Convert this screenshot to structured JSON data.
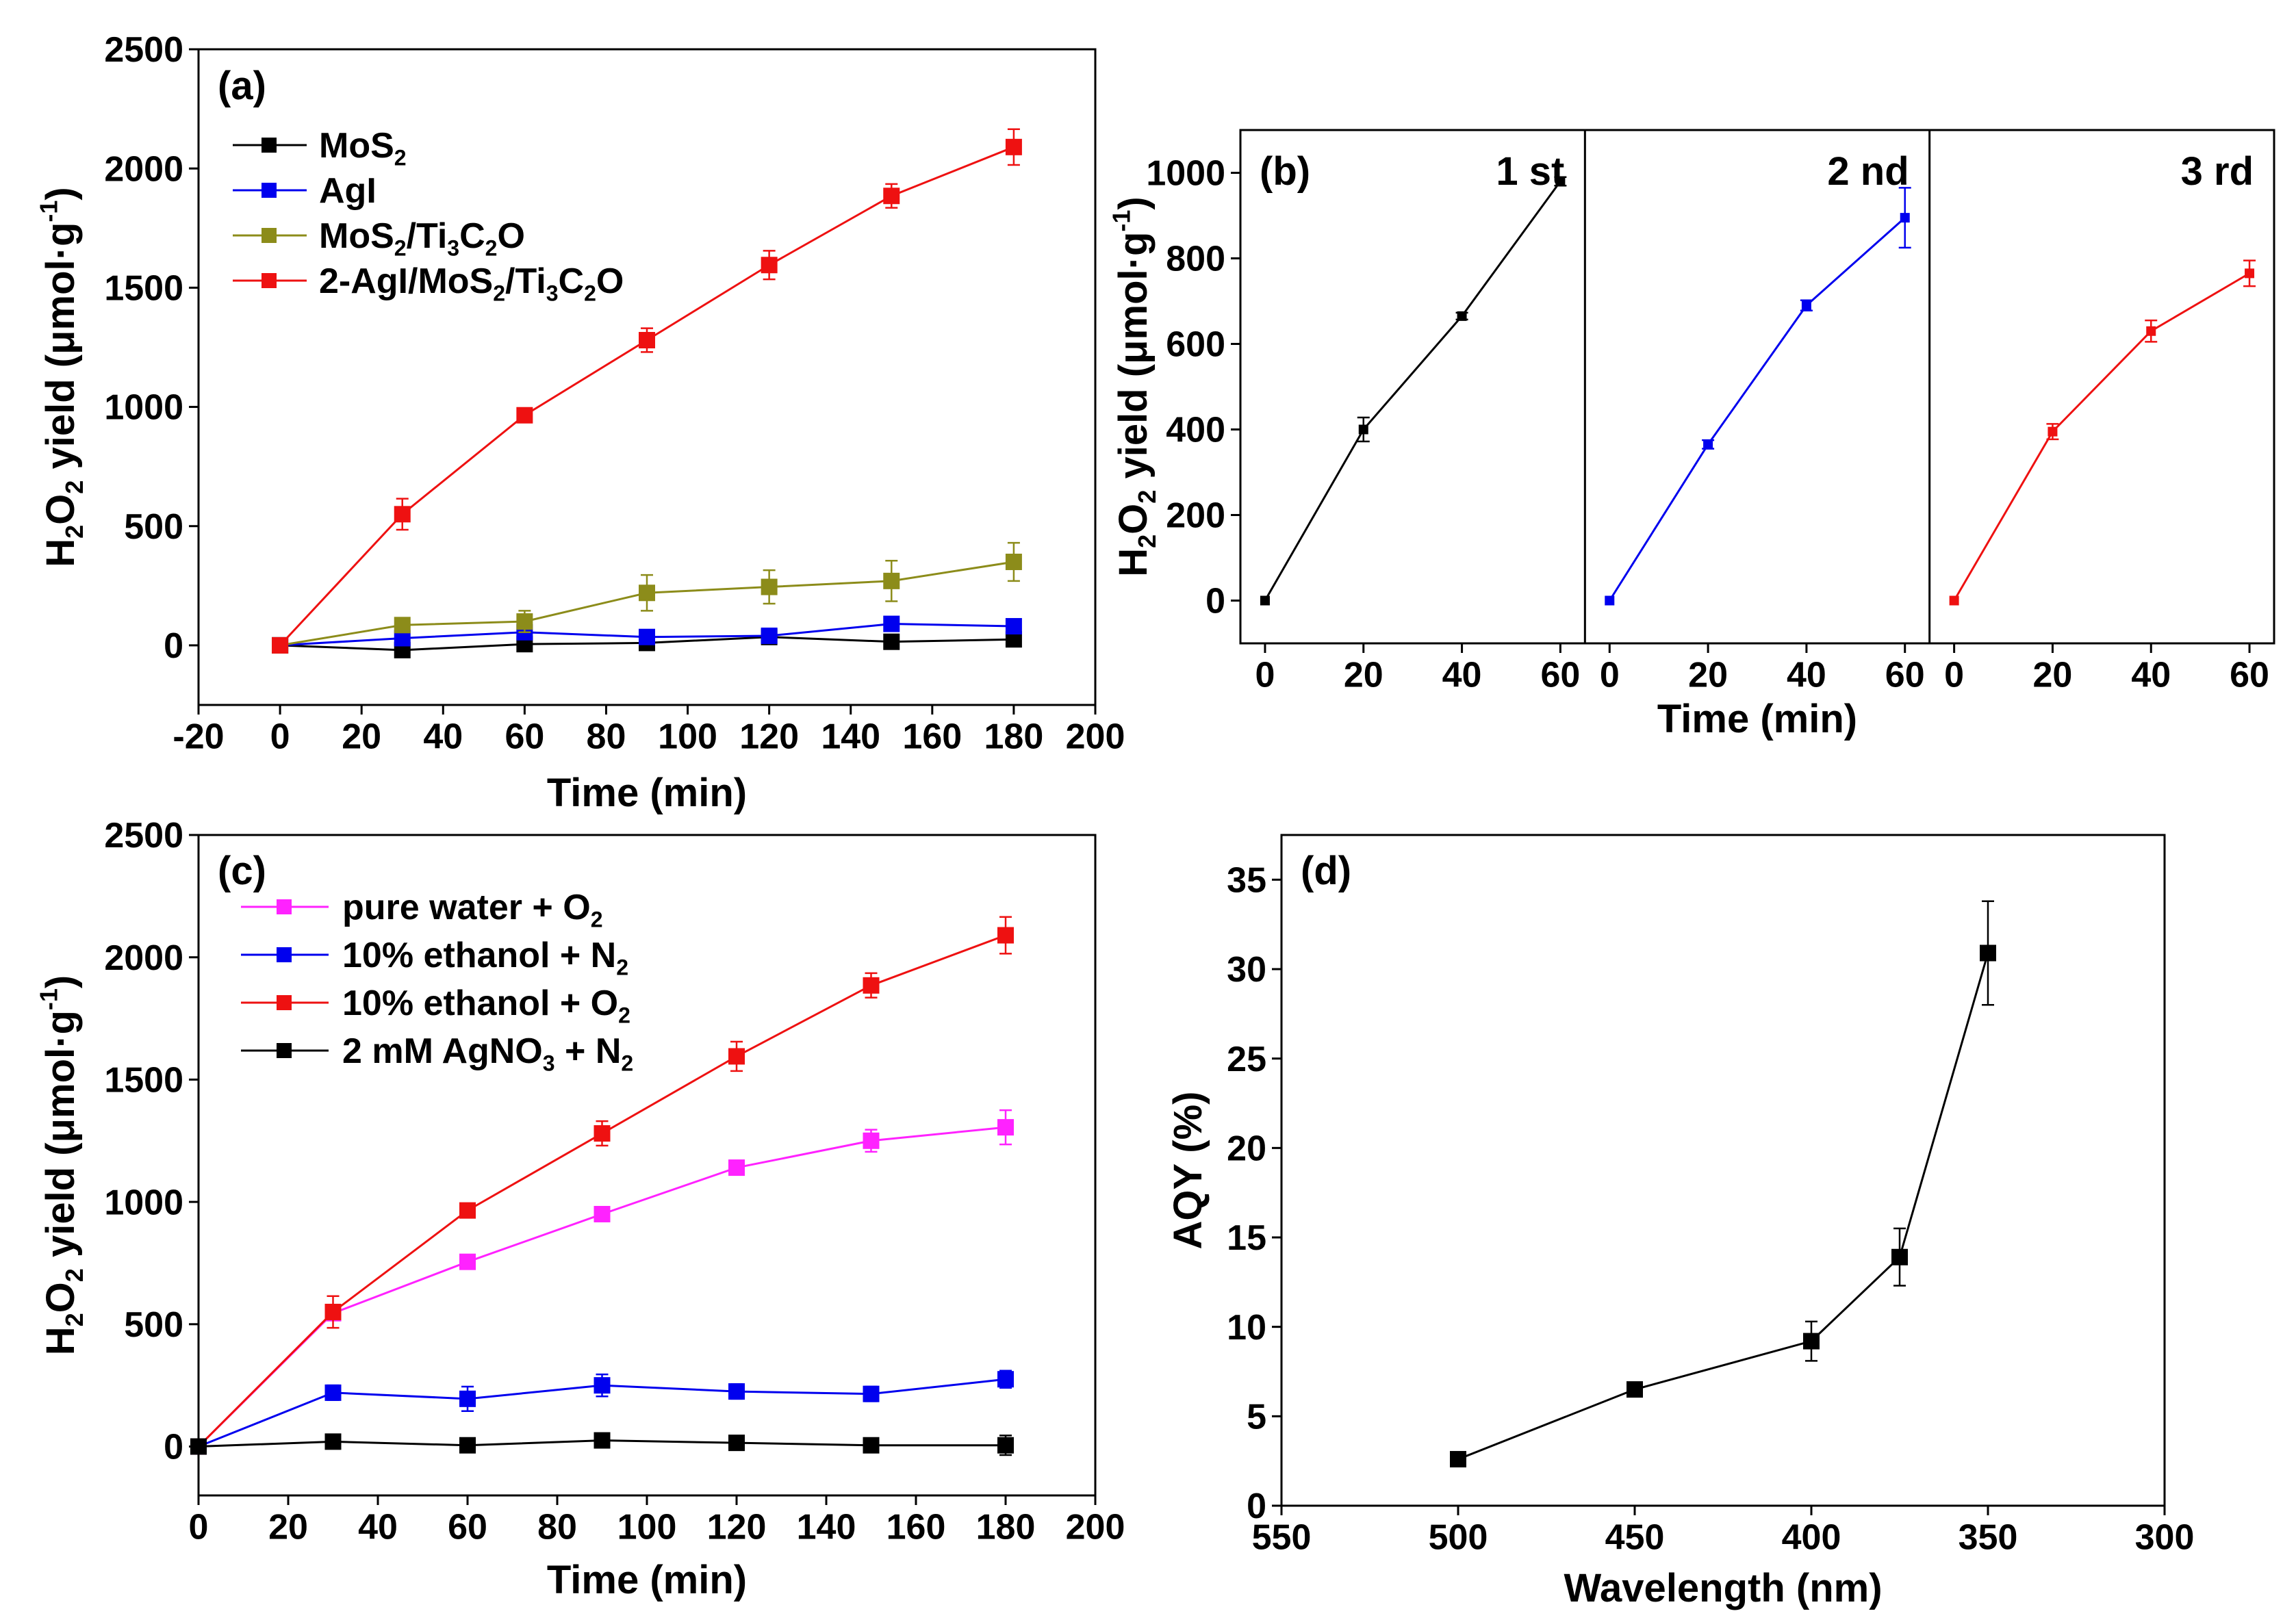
{
  "chart_data": [
    {
      "panel": "(a)",
      "type": "line",
      "xlabel": "Time (min)",
      "ylabel_parts": [
        "H",
        "2",
        "O",
        "2",
        " yield (μmol·g",
        "-1",
        ")"
      ],
      "xlim": [
        -20,
        200
      ],
      "ylim": [
        -250,
        2500
      ],
      "xticks": [
        -20,
        0,
        20,
        40,
        60,
        80,
        100,
        120,
        140,
        160,
        180,
        200
      ],
      "yticks": [
        0,
        500,
        1000,
        1500,
        2000,
        2500
      ],
      "x": [
        0,
        30,
        60,
        90,
        120,
        150,
        180
      ],
      "legend_placement": "top-left",
      "series": [
        {
          "name": "MoS2",
          "label_parts": [
            "MoS",
            "2"
          ],
          "color": "#000000",
          "values": [
            0,
            -20,
            5,
            10,
            35,
            15,
            25
          ],
          "errors": [
            0,
            25,
            20,
            15,
            15,
            20,
            20
          ]
        },
        {
          "name": "AgI",
          "label_parts": [
            "AgI"
          ],
          "color": "#0000ee",
          "values": [
            0,
            30,
            55,
            35,
            40,
            90,
            80
          ],
          "errors": [
            0,
            15,
            15,
            15,
            15,
            20,
            20
          ]
        },
        {
          "name": "MoS2/Ti3C2O",
          "label_parts": [
            "MoS",
            "2",
            "/Ti",
            "3",
            "C",
            "2",
            "O"
          ],
          "color": "#8c8c1a",
          "values": [
            0,
            85,
            100,
            220,
            245,
            270,
            350
          ],
          "errors": [
            0,
            20,
            45,
            75,
            70,
            85,
            80
          ]
        },
        {
          "name": "2-AgI/MoS2/Ti3C2O",
          "label_parts": [
            "2-AgI/MoS",
            "2",
            "/Ti",
            "3",
            "C",
            "2",
            "O"
          ],
          "color": "#ee1111",
          "values": [
            0,
            550,
            965,
            1280,
            1595,
            1885,
            2090
          ],
          "errors": [
            0,
            65,
            25,
            50,
            60,
            50,
            75
          ]
        }
      ]
    },
    {
      "panel": "(b)",
      "type": "line",
      "xlabel": "Time (min)",
      "ylabel_parts": [
        "H",
        "2",
        "O",
        "2",
        " yield (μmol·g",
        "-1",
        ")"
      ],
      "xlim": [
        -5,
        65
      ],
      "ylim": [
        -100,
        1100
      ],
      "xticks": [
        0,
        20,
        40,
        60
      ],
      "yticks": [
        0,
        200,
        400,
        600,
        800,
        1000
      ],
      "cycles": [
        {
          "label": "1 st",
          "color": "#000000",
          "x": [
            0,
            20,
            40,
            60
          ],
          "values": [
            0,
            400,
            665,
            980
          ],
          "errors": [
            0,
            28,
            8,
            10
          ]
        },
        {
          "label": "2 nd",
          "color": "#0000ee",
          "x": [
            0,
            20,
            40,
            60
          ],
          "values": [
            0,
            365,
            690,
            895
          ],
          "errors": [
            0,
            10,
            12,
            70
          ]
        },
        {
          "label": "3 rd",
          "color": "#ee1111",
          "x": [
            0,
            20,
            40,
            60
          ],
          "values": [
            0,
            395,
            630,
            765
          ],
          "errors": [
            0,
            18,
            25,
            30
          ]
        }
      ]
    },
    {
      "panel": "(c)",
      "type": "line",
      "xlabel": "Time (min)",
      "ylabel_parts": [
        "H",
        "2",
        "O",
        "2",
        " yield (μmol·g",
        "-1",
        ")"
      ],
      "xlim": [
        0,
        200
      ],
      "ylim": [
        -200,
        2500
      ],
      "xticks": [
        0,
        20,
        40,
        60,
        80,
        100,
        120,
        140,
        160,
        180,
        200
      ],
      "yticks": [
        0,
        500,
        1000,
        1500,
        2000,
        2500
      ],
      "x": [
        0,
        30,
        60,
        90,
        120,
        150,
        180
      ],
      "legend_placement": "top-left",
      "series": [
        {
          "name": "pure water + O2",
          "label_parts": [
            "pure water + O",
            "2"
          ],
          "color": "#ff22ff",
          "values": [
            0,
            545,
            755,
            950,
            1140,
            1250,
            1305
          ],
          "errors": [
            0,
            20,
            20,
            15,
            20,
            45,
            70
          ]
        },
        {
          "name": "10% ethanol + N2",
          "label_parts": [
            "10% ethanol + N",
            "2"
          ],
          "color": "#0000ee",
          "values": [
            0,
            220,
            195,
            250,
            225,
            215,
            275
          ],
          "errors": [
            0,
            30,
            50,
            45,
            30,
            30,
            35
          ]
        },
        {
          "name": "10% ethanol + O2",
          "label_parts": [
            "10% ethanol + O",
            "2"
          ],
          "color": "#ee1111",
          "values": [
            0,
            550,
            965,
            1280,
            1595,
            1885,
            2090
          ],
          "errors": [
            0,
            65,
            25,
            50,
            60,
            50,
            75
          ]
        },
        {
          "name": "2 mM AgNO3 + N2",
          "label_parts": [
            "2 mM AgNO",
            "3",
            " + N",
            "2"
          ],
          "color": "#000000",
          "values": [
            0,
            20,
            5,
            25,
            15,
            5,
            5
          ],
          "errors": [
            0,
            15,
            25,
            15,
            15,
            15,
            40
          ]
        }
      ]
    },
    {
      "panel": "(d)",
      "type": "line",
      "xlabel": "Wavelength (nm)",
      "ylabel": "AQY (%)",
      "xlim": [
        550,
        300
      ],
      "ylim": [
        0,
        37.5
      ],
      "xticks": [
        550,
        500,
        450,
        400,
        350,
        300
      ],
      "yticks": [
        0,
        5,
        10,
        15,
        20,
        25,
        30,
        35
      ],
      "series": [
        {
          "name": "AQY",
          "color": "#000000",
          "x": [
            500,
            450,
            400,
            375,
            350
          ],
          "values": [
            2.6,
            6.5,
            9.2,
            13.9,
            30.9
          ],
          "errors": [
            0.2,
            0.2,
            1.1,
            1.6,
            2.9
          ]
        }
      ]
    }
  ]
}
